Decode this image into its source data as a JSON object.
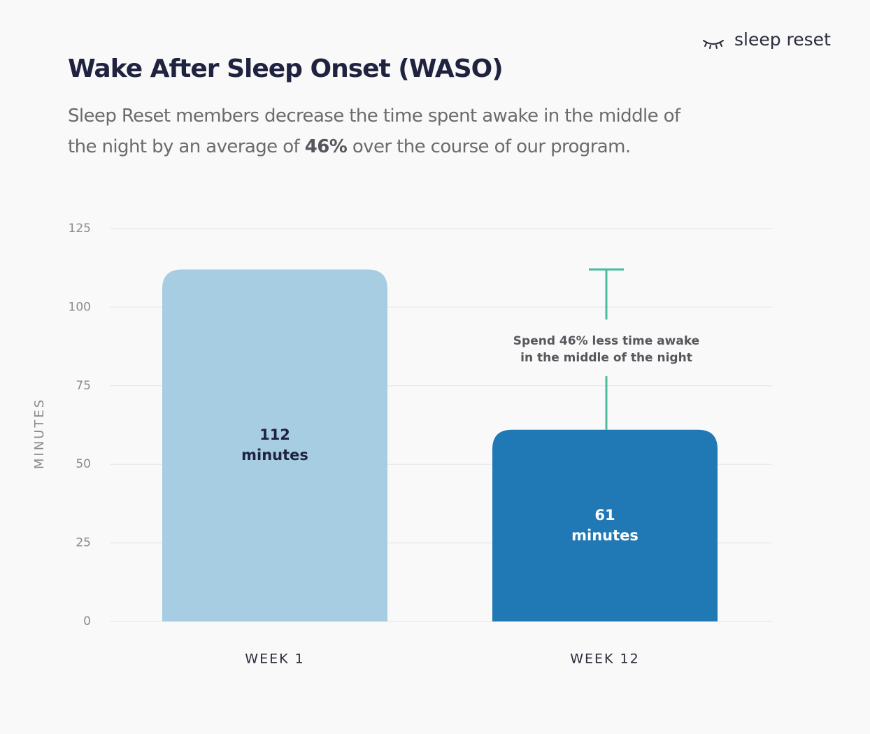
{
  "logo": "sleep reset",
  "chart_data": {
    "type": "bar",
    "title": "Wake After Sleep Onset (WASO)",
    "subtitle": [
      "Sleep Reset members decrease the time spent awake in the middle of the night by an average of ",
      "46%",
      " over the course of our program."
    ],
    "y_label": "MINUTES",
    "categories": [
      "WEEK 1",
      "WEEK 12"
    ],
    "values": [
      112,
      61
    ],
    "value_labels": [
      "112 minutes",
      "61 minutes"
    ],
    "colors": [
      "#a6cde2",
      "#2078b4"
    ],
    "label_colors": [
      "#1f2340",
      "#ffffff"
    ],
    "annotation": "Spend 46% less time awake in the middle of the night",
    "annotation_color": "#4cbb9e",
    "ylim": [
      0,
      125
    ],
    "yticks": [
      0,
      25,
      50,
      75,
      100,
      125
    ],
    "grid": true
  }
}
